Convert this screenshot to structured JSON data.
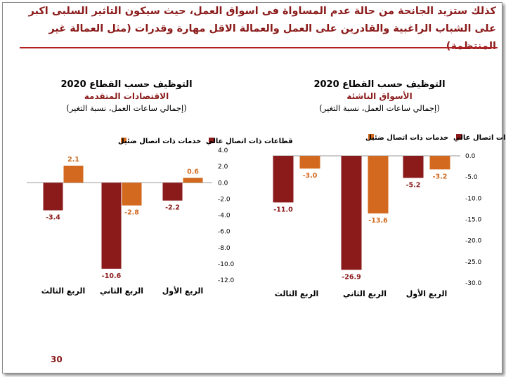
{
  "headline": "كذلك ستزيد الجانحة من حالة عدم المساواة  فى اسواق العمل، حيث سيكون التاثير السلبى اكبر على الشباب الراغبية والقادرين على العمل والعمالة الاقل مهارة وقدرات (مثل العمالة غير المنتظمة)",
  "page_number": "30",
  "colors": {
    "high": "#8b1a1a",
    "low": "#d2691e",
    "headline": "#8b1a1a"
  },
  "chart_data": [
    {
      "type": "bar",
      "title": "التوظيف حسب القطاع 2020",
      "subtitle": "الاقتصادات المتقدمة",
      "note": "(إجمالي ساعات العمل، نسبة التغير)",
      "categories": [
        "الربع الثالث",
        "الربع الثاني",
        "الربع الأول"
      ],
      "series": [
        {
          "name": "قطاعات ذات اتصال عالي",
          "values": [
            -3.4,
            -10.6,
            -2.2
          ]
        },
        {
          "name": "خدمات ذات اتصال ضئيل",
          "values": [
            2.1,
            -2.8,
            0.6
          ]
        }
      ],
      "value_labels": [
        [
          "-3.4",
          "-10.6",
          "-2.2"
        ],
        [
          "2.1",
          "-2.8",
          "0.6"
        ]
      ],
      "ylim": [
        -12,
        4
      ],
      "ticks": [
        4,
        2,
        0,
        -2,
        -4,
        -6,
        -8,
        -10,
        -12
      ],
      "tick_labels": [
        "4.0",
        "2.0",
        "0.0",
        "-2.0",
        "-4.0",
        "-6.0",
        "-8.0",
        "-10.0",
        "-12.0"
      ],
      "xlabel": "",
      "ylabel": ""
    },
    {
      "type": "bar",
      "title": "التوظيف حسب القطاع 2020",
      "subtitle": "الأسواق الناشئة",
      "note": "(إجمالي ساعات العمل، نسبة التغير)",
      "categories": [
        "الربع الثالث",
        "الربع الثاني",
        "الربع الأول"
      ],
      "series": [
        {
          "name": "قطاعات ذات اتصال عالي",
          "values": [
            -11.0,
            -26.9,
            -5.2
          ]
        },
        {
          "name": "خدمات ذات اتصال ضئيل",
          "values": [
            -3.0,
            -13.6,
            -3.2
          ]
        }
      ],
      "value_labels": [
        [
          "-11.0",
          "-26.9",
          "-5.2"
        ],
        [
          "-3.0",
          "-13.6",
          "-3.2"
        ]
      ],
      "ylim": [
        -30,
        0
      ],
      "ticks": [
        0,
        -5,
        -10,
        -15,
        -20,
        -25,
        -30
      ],
      "tick_labels": [
        "0.0",
        "-5.0",
        "-10.0",
        "-15.0",
        "-20.0",
        "-25.0",
        "-30.0"
      ],
      "xlabel": "",
      "ylabel": ""
    }
  ]
}
